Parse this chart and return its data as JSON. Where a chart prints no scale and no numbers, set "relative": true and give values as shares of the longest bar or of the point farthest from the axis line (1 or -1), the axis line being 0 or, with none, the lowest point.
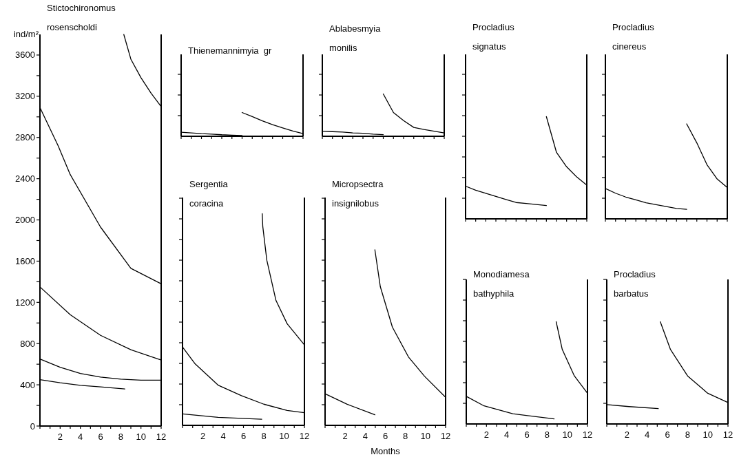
{
  "chart_data": [
    {
      "type": "line",
      "title": "Stictochironomus\nrosenscholdi",
      "ylabel": "ind/m²",
      "xlim": [
        0,
        12
      ],
      "ylim": [
        0,
        3800
      ],
      "xticks": [
        {
          "value": 0,
          "label": null
        },
        {
          "value": 1,
          "label": null
        },
        2,
        {
          "value": 3,
          "label": null
        },
        4,
        {
          "value": 5,
          "label": null
        },
        6,
        {
          "value": 7,
          "label": null
        },
        8,
        {
          "value": 9,
          "label": null
        },
        10,
        {
          "value": 11,
          "label": null
        },
        12
      ],
      "yticks": [
        0,
        {
          "value": 200,
          "label": null
        },
        400,
        {
          "value": 600,
          "label": null
        },
        800,
        {
          "value": 1000,
          "label": null
        },
        1200,
        {
          "value": 1400,
          "label": null
        },
        1600,
        {
          "value": 1800,
          "label": null
        },
        2000,
        {
          "value": 2200,
          "label": null
        },
        2400,
        {
          "value": 2600,
          "label": null
        },
        2800,
        {
          "value": 3000,
          "label": null
        },
        3200,
        {
          "value": 3400,
          "label": null
        },
        3600
      ],
      "series": [
        {
          "color": "#000000",
          "x": [
            8.3,
            9,
            10,
            11,
            12
          ],
          "values": [
            3800,
            3560,
            3380,
            3230,
            3100
          ]
        },
        {
          "color": "#000000",
          "x": [
            0,
            1.8,
            3,
            6,
            9,
            12
          ],
          "values": [
            3090,
            2720,
            2440,
            1930,
            1530,
            1380
          ]
        },
        {
          "color": "#000000",
          "x": [
            0,
            3,
            6,
            9,
            12
          ],
          "values": [
            1350,
            1080,
            880,
            740,
            640
          ]
        },
        {
          "color": "#000000",
          "x": [
            0,
            2,
            4,
            6,
            8,
            10,
            12
          ],
          "values": [
            650,
            570,
            510,
            475,
            455,
            445,
            445
          ]
        },
        {
          "color": "#000000",
          "x": [
            0,
            2,
            4,
            6,
            8.4
          ],
          "values": [
            450,
            420,
            395,
            380,
            360
          ]
        }
      ]
    },
    {
      "type": "line",
      "title": "Thienemannimyia  gr",
      "relative": true,
      "tick_labels": false,
      "categories": [
        null,
        null,
        null,
        null,
        null,
        null,
        null,
        null,
        null,
        null,
        null,
        null,
        null
      ],
      "series": [
        {
          "color": "#000000",
          "values": [
            null,
            null,
            null,
            null,
            null,
            null,
            1,
            0.83,
            0.65,
            0.49,
            0.35,
            0.22,
            0.11
          ]
        },
        {
          "color": "#000000",
          "values": [
            0.17,
            0.14,
            0.11,
            0.09,
            0.065,
            0.05,
            0.035,
            null,
            null,
            null,
            null,
            null,
            null
          ]
        }
      ]
    },
    {
      "type": "line",
      "title": "Ablabesmyia\nmonilis",
      "relative": true,
      "tick_labels": false,
      "categories": [
        null,
        null,
        null,
        null,
        null,
        null,
        null,
        null,
        null,
        null,
        null,
        null,
        null
      ],
      "series": [
        {
          "color": "#000000",
          "values": [
            null,
            null,
            null,
            null,
            null,
            null,
            1,
            0.56,
            0.37,
            0.21,
            0.16,
            0.12,
            0.08
          ]
        },
        {
          "color": "#000000",
          "values": [
            0.12,
            0.11,
            0.1,
            0.08,
            0.07,
            0.05,
            0.04,
            null,
            null,
            null,
            null,
            null,
            null
          ]
        }
      ]
    },
    {
      "type": "line",
      "title": "Sergentia\ncoracina",
      "relative": true,
      "tick_labels": "x",
      "xlim": [
        0,
        12
      ],
      "xticks": [
        {
          "value": 0,
          "label": null
        },
        {
          "value": 1,
          "label": null
        },
        2,
        {
          "value": 3,
          "label": null
        },
        4,
        {
          "value": 5,
          "label": null
        },
        6,
        {
          "value": 7,
          "label": null
        },
        8,
        {
          "value": 9,
          "label": null
        },
        10,
        {
          "value": 11,
          "label": null
        },
        12
      ],
      "series": [
        {
          "color": "#000000",
          "x": [
            7.85,
            7.9,
            8.3,
            9.2,
            10.3,
            12
          ],
          "values": [
            1,
            0.94,
            0.78,
            0.59,
            0.48,
            0.38
          ]
        },
        {
          "color": "#000000",
          "x": [
            0,
            1.25,
            3.5,
            5.8,
            8,
            10.3,
            12
          ],
          "values": [
            0.37,
            0.29,
            0.19,
            0.14,
            0.1,
            0.07,
            0.06
          ]
        },
        {
          "color": "#000000",
          "x": [
            0,
            3.5,
            7.8
          ],
          "values": [
            0.054,
            0.038,
            0.029
          ]
        }
      ]
    },
    {
      "type": "line",
      "title": "Micropsectra\ninsignilobus",
      "xlabel": "Months",
      "relative": true,
      "tick_labels": "x",
      "xlim": [
        0,
        12
      ],
      "xticks": [
        {
          "value": 0,
          "label": null
        },
        {
          "value": 1,
          "label": null
        },
        2,
        {
          "value": 3,
          "label": null
        },
        4,
        {
          "value": 5,
          "label": null
        },
        6,
        {
          "value": 7,
          "label": null
        },
        8,
        {
          "value": 9,
          "label": null
        },
        10,
        {
          "value": 11,
          "label": null
        },
        12
      ],
      "series": [
        {
          "color": "#000000",
          "x": [
            4.96,
            5.5,
            6.7,
            8.3,
            9.9,
            12
          ],
          "values": [
            1,
            0.79,
            0.56,
            0.39,
            0.28,
            0.16
          ]
        },
        {
          "color": "#000000",
          "x": [
            0,
            2.2,
            4.96
          ],
          "values": [
            0.18,
            0.12,
            0.06
          ]
        }
      ]
    },
    {
      "type": "line",
      "title": "Procladius\nsignatus",
      "relative": true,
      "tick_labels": false,
      "categories": [
        null,
        null,
        null,
        null,
        null,
        null,
        null,
        null,
        null,
        null,
        null,
        null,
        null
      ],
      "series": [
        {
          "color": "#000000",
          "values": [
            null,
            null,
            null,
            null,
            null,
            null,
            null,
            null,
            1,
            0.65,
            0.51,
            0.41,
            0.33
          ]
        },
        {
          "color": "#000000",
          "values": [
            0.32,
            0.28,
            0.25,
            0.22,
            0.19,
            0.16,
            0.15,
            0.14,
            0.13,
            null,
            null,
            null,
            null
          ]
        }
      ]
    },
    {
      "type": "line",
      "title": "Procladius\ncinereus",
      "relative": true,
      "tick_labels": false,
      "categories": [
        null,
        null,
        null,
        null,
        null,
        null,
        null,
        null,
        null,
        null,
        null,
        null,
        null
      ],
      "series": [
        {
          "color": "#000000",
          "values": [
            null,
            null,
            null,
            null,
            null,
            null,
            null,
            null,
            1,
            0.8,
            0.57,
            0.42,
            0.33
          ]
        },
        {
          "color": "#000000",
          "values": [
            0.32,
            0.27,
            0.23,
            0.2,
            0.17,
            0.15,
            0.13,
            0.11,
            0.1,
            null,
            null,
            null,
            null
          ]
        }
      ]
    },
    {
      "type": "line",
      "title": "Monodiamesa\nbathyphila",
      "relative": true,
      "tick_labels": "x",
      "xlim": [
        0,
        12
      ],
      "xticks": [
        {
          "value": 0,
          "label": null
        },
        {
          "value": 1,
          "label": null
        },
        2,
        {
          "value": 3,
          "label": null
        },
        4,
        {
          "value": 5,
          "label": null
        },
        6,
        {
          "value": 7,
          "label": null
        },
        8,
        {
          "value": 9,
          "label": null
        },
        10,
        {
          "value": 11,
          "label": null
        },
        12
      ],
      "series": [
        {
          "color": "#000000",
          "x": [
            8.9,
            9.5,
            10.7,
            12
          ],
          "values": [
            1,
            0.73,
            0.47,
            0.3
          ]
        },
        {
          "color": "#000000",
          "x": [
            0,
            1.7,
            4.6,
            8.7
          ],
          "values": [
            0.27,
            0.18,
            0.1,
            0.05
          ]
        }
      ]
    },
    {
      "type": "line",
      "title": "Procladius\nbarbatus",
      "relative": true,
      "tick_labels": "x",
      "xlim": [
        0,
        12
      ],
      "xticks": [
        {
          "value": 0,
          "label": null
        },
        {
          "value": 1,
          "label": null
        },
        2,
        {
          "value": 3,
          "label": null
        },
        4,
        {
          "value": 5,
          "label": null
        },
        6,
        {
          "value": 7,
          "label": null
        },
        8,
        {
          "value": 9,
          "label": null
        },
        10,
        {
          "value": 11,
          "label": null
        },
        12
      ],
      "series": [
        {
          "color": "#000000",
          "x": [
            5.3,
            6.3,
            8,
            10,
            12
          ],
          "values": [
            1,
            0.73,
            0.47,
            0.3,
            0.21
          ]
        },
        {
          "color": "#000000",
          "x": [
            0,
            2.2,
            5.1
          ],
          "values": [
            0.19,
            0.17,
            0.15
          ]
        }
      ]
    }
  ]
}
